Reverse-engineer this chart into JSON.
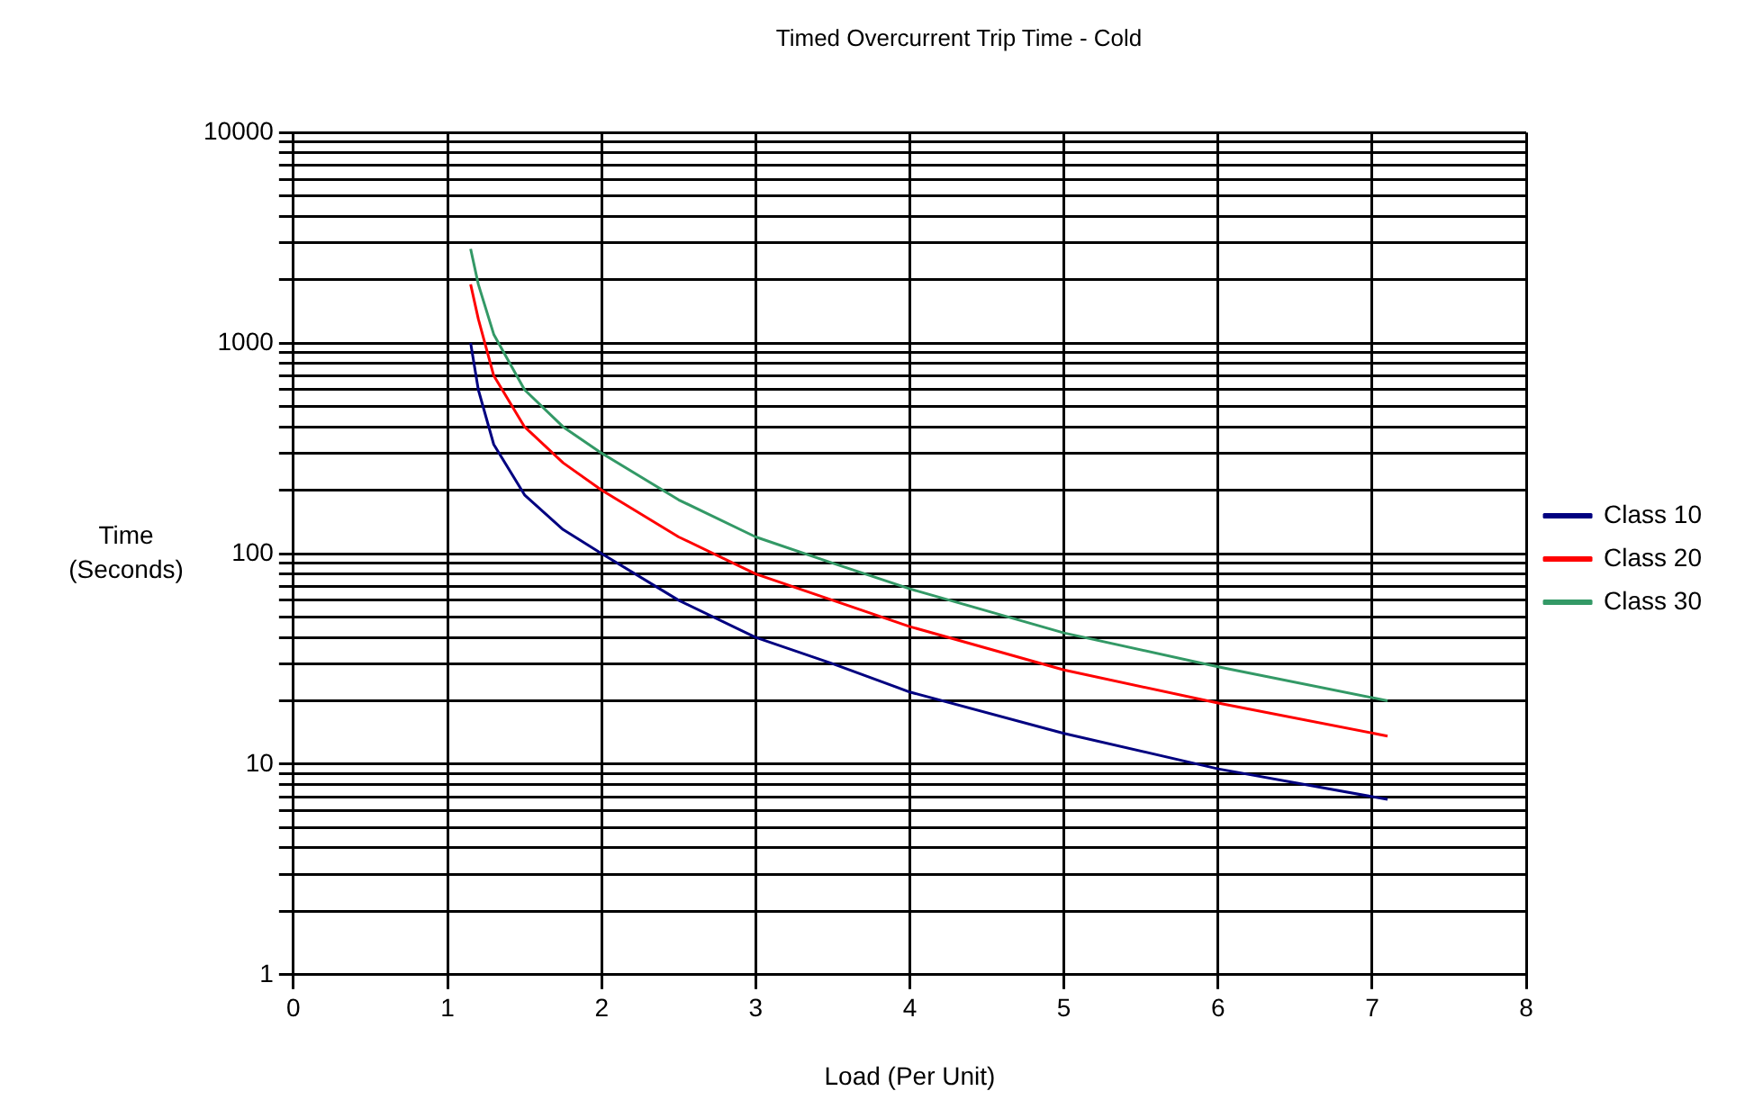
{
  "chart_data": {
    "type": "line",
    "title": "Timed Overcurrent Trip Time - Cold",
    "xlabel": "Load (Per Unit)",
    "ylabel": "Time (Seconds)",
    "x": [
      1.15,
      1.2,
      1.3,
      1.5,
      1.75,
      2,
      2.5,
      3,
      3.5,
      4,
      5,
      6,
      7.1
    ],
    "series": [
      {
        "name": "Class 10",
        "color": "#000080",
        "values": [
          1000,
          600,
          330,
          190,
          130,
          100,
          60,
          40,
          30,
          22,
          14,
          9.5,
          6.8
        ]
      },
      {
        "name": "Class 20",
        "color": "#ff0000",
        "values": [
          1900,
          1300,
          700,
          400,
          270,
          200,
          120,
          80,
          60,
          45,
          28,
          19.5,
          13.6
        ]
      },
      {
        "name": "Class 30",
        "color": "#339966",
        "values": [
          2800,
          1900,
          1100,
          600,
          400,
          300,
          180,
          120,
          90,
          68,
          42,
          29,
          20
        ]
      }
    ],
    "xlim": [
      0,
      8
    ],
    "xticks": [
      0,
      1,
      2,
      3,
      4,
      5,
      6,
      7,
      8
    ],
    "ylim": [
      1,
      10000
    ],
    "log": "y",
    "yticks": [
      1,
      {
        "value": 2,
        "label": null
      },
      {
        "value": 3,
        "label": null
      },
      {
        "value": 4,
        "label": null
      },
      {
        "value": 5,
        "label": null
      },
      {
        "value": 6,
        "label": null
      },
      {
        "value": 7,
        "label": null
      },
      {
        "value": 8,
        "label": null
      },
      {
        "value": 9,
        "label": null
      },
      10,
      {
        "value": 20,
        "label": null
      },
      {
        "value": 30,
        "label": null
      },
      {
        "value": 40,
        "label": null
      },
      {
        "value": 50,
        "label": null
      },
      {
        "value": 60,
        "label": null
      },
      {
        "value": 70,
        "label": null
      },
      {
        "value": 80,
        "label": null
      },
      {
        "value": 90,
        "label": null
      },
      100,
      {
        "value": 200,
        "label": null
      },
      {
        "value": 300,
        "label": null
      },
      {
        "value": 400,
        "label": null
      },
      {
        "value": 500,
        "label": null
      },
      {
        "value": 600,
        "label": null
      },
      {
        "value": 700,
        "label": null
      },
      {
        "value": 800,
        "label": null
      },
      {
        "value": 900,
        "label": null
      },
      1000,
      {
        "value": 2000,
        "label": null
      },
      {
        "value": 3000,
        "label": null
      },
      {
        "value": 4000,
        "label": null
      },
      {
        "value": 5000,
        "label": null
      },
      {
        "value": 6000,
        "label": null
      },
      {
        "value": 7000,
        "label": null
      },
      {
        "value": 8000,
        "label": null
      },
      {
        "value": 9000,
        "label": null
      },
      10000
    ],
    "grid": true,
    "legend": "right",
    "marker": "none",
    "line_style": "solid"
  }
}
